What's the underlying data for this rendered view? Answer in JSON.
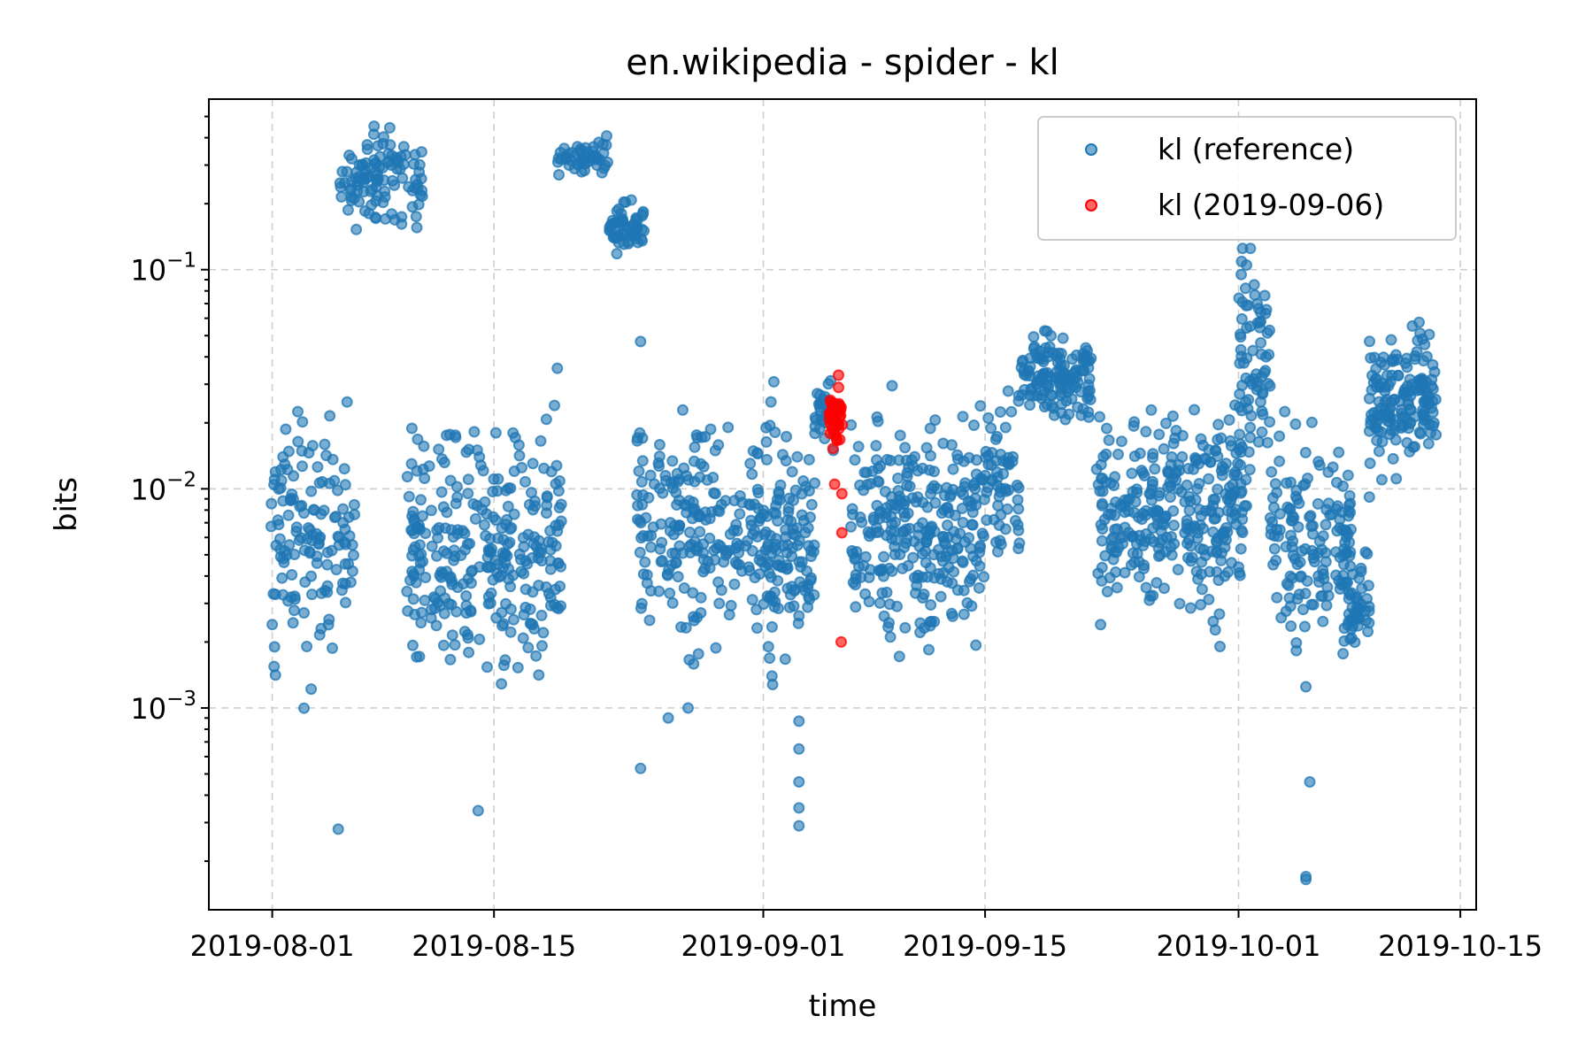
{
  "chart_data": {
    "type": "scatter",
    "title": "en.wikipedia - spider - kl",
    "xlabel": "time",
    "ylabel": "bits",
    "x_ticks": [
      "2019-08-01",
      "2019-08-15",
      "2019-09-01",
      "2019-09-15",
      "2019-10-01",
      "2019-10-15"
    ],
    "y_ticks": [
      {
        "value": 0.001,
        "base": "10",
        "exp": "−3"
      },
      {
        "value": 0.01,
        "base": "10",
        "exp": "−2"
      },
      {
        "value": 0.1,
        "base": "10",
        "exp": "−1"
      }
    ],
    "xlim": [
      "2019-07-28",
      "2019-10-16"
    ],
    "ylim": [
      0.00012,
      0.6
    ],
    "yscale": "log",
    "grid": true,
    "legend_position": "top-right",
    "colors": {
      "reference": "#1f77b4",
      "current": "#ff0000"
    },
    "series": [
      {
        "name": "kl (reference)",
        "color": "#1f77b4",
        "clusters": [
          {
            "t0": "2019-07-31T22:00",
            "t1": "2019-08-06T06:00",
            "center": 0.006,
            "spread": 0.45,
            "n": 140
          },
          {
            "t0": "2019-08-05T06:00",
            "t1": "2019-08-10T12:00",
            "center": 0.25,
            "spread": 0.17,
            "n": 110
          },
          {
            "t0": "2019-08-09T12:00",
            "t1": "2019-08-19T06:00",
            "center": 0.0055,
            "spread": 0.45,
            "n": 300
          },
          {
            "t0": "2019-08-19T00:00",
            "t1": "2019-08-22T06:00",
            "center": 0.32,
            "spread": 0.07,
            "n": 50
          },
          {
            "t0": "2019-08-22T06:00",
            "t1": "2019-08-24T12:00",
            "center": 0.16,
            "spread": 0.1,
            "n": 60
          },
          {
            "t0": "2019-08-24T00:00",
            "t1": "2019-09-01T06:00",
            "center": 0.007,
            "spread": 0.4,
            "n": 220
          },
          {
            "t0": "2019-09-01T00:00",
            "t1": "2019-09-04T06:00",
            "center": 0.005,
            "spread": 0.5,
            "n": 120
          },
          {
            "t0": "2019-09-04T06:00",
            "t1": "2019-09-05T12:00",
            "center": 0.023,
            "spread": 0.13,
            "n": 30
          },
          {
            "t0": "2019-09-06T12:00",
            "t1": "2019-09-15T00:00",
            "center": 0.006,
            "spread": 0.4,
            "n": 280
          },
          {
            "t0": "2019-09-15T00:00",
            "t1": "2019-09-17T06:00",
            "center": 0.012,
            "spread": 0.3,
            "n": 60
          },
          {
            "t0": "2019-09-17T06:00",
            "t1": "2019-09-21T18:00",
            "center": 0.032,
            "spread": 0.14,
            "n": 140
          },
          {
            "t0": "2019-09-22T00:00",
            "t1": "2019-10-01T12:00",
            "center": 0.008,
            "spread": 0.35,
            "n": 320
          },
          {
            "t0": "2019-10-01T00:00",
            "t1": "2019-10-03T00:00",
            "center": 0.04,
            "spread": 0.35,
            "n": 70
          },
          {
            "t0": "2019-10-03T00:00",
            "t1": "2019-10-08T06:00",
            "center": 0.006,
            "spread": 0.4,
            "n": 150
          },
          {
            "t0": "2019-10-07T12:00",
            "t1": "2019-10-09T06:00",
            "center": 0.0028,
            "spread": 0.2,
            "n": 50
          },
          {
            "t0": "2019-10-09T06:00",
            "t1": "2019-10-13T12:00",
            "center": 0.025,
            "spread": 0.25,
            "n": 170
          }
        ],
        "points": [
          [
            "2019-08-05T04:00",
            0.00028
          ],
          [
            "2019-08-14T00:00",
            0.00034
          ],
          [
            "2019-08-19T00:00",
            0.0355
          ],
          [
            "2019-08-24T06:00",
            0.047
          ],
          [
            "2019-08-24T06:00",
            0.00053
          ],
          [
            "2019-08-26T00:00",
            0.0009
          ],
          [
            "2019-08-27T06:00",
            0.001
          ],
          [
            "2019-09-03T06:00",
            0.00029
          ],
          [
            "2019-09-03T06:00",
            0.00035
          ],
          [
            "2019-09-03T06:00",
            0.00046
          ],
          [
            "2019-09-03T06:00",
            0.00065
          ],
          [
            "2019-09-03T06:00",
            0.00087
          ],
          [
            "2019-10-05T06:00",
            0.00017
          ],
          [
            "2019-10-05T06:00",
            0.000165
          ],
          [
            "2019-10-05T12:00",
            0.00046
          ],
          [
            "2019-10-05T06:00",
            0.00125
          ],
          [
            "2019-10-01T06:00",
            0.125
          ],
          [
            "2019-10-01T18:00",
            0.125
          ],
          [
            "2019-10-01T12:00",
            0.105
          ]
        ]
      },
      {
        "name": "kl (2019-09-06)",
        "color": "#ff0000",
        "clusters": [
          {
            "t0": "2019-09-05T04:00",
            "t1": "2019-09-06T00:00",
            "center": 0.021,
            "spread": 0.09,
            "n": 50
          }
        ],
        "points": [
          [
            "2019-09-05T18:00",
            0.033
          ],
          [
            "2019-09-05T18:00",
            0.029
          ],
          [
            "2019-09-05T12:00",
            0.0105
          ],
          [
            "2019-09-05T23:00",
            0.0095
          ],
          [
            "2019-09-05T23:00",
            0.0063
          ],
          [
            "2019-09-05T22:00",
            0.002
          ]
        ]
      }
    ]
  }
}
